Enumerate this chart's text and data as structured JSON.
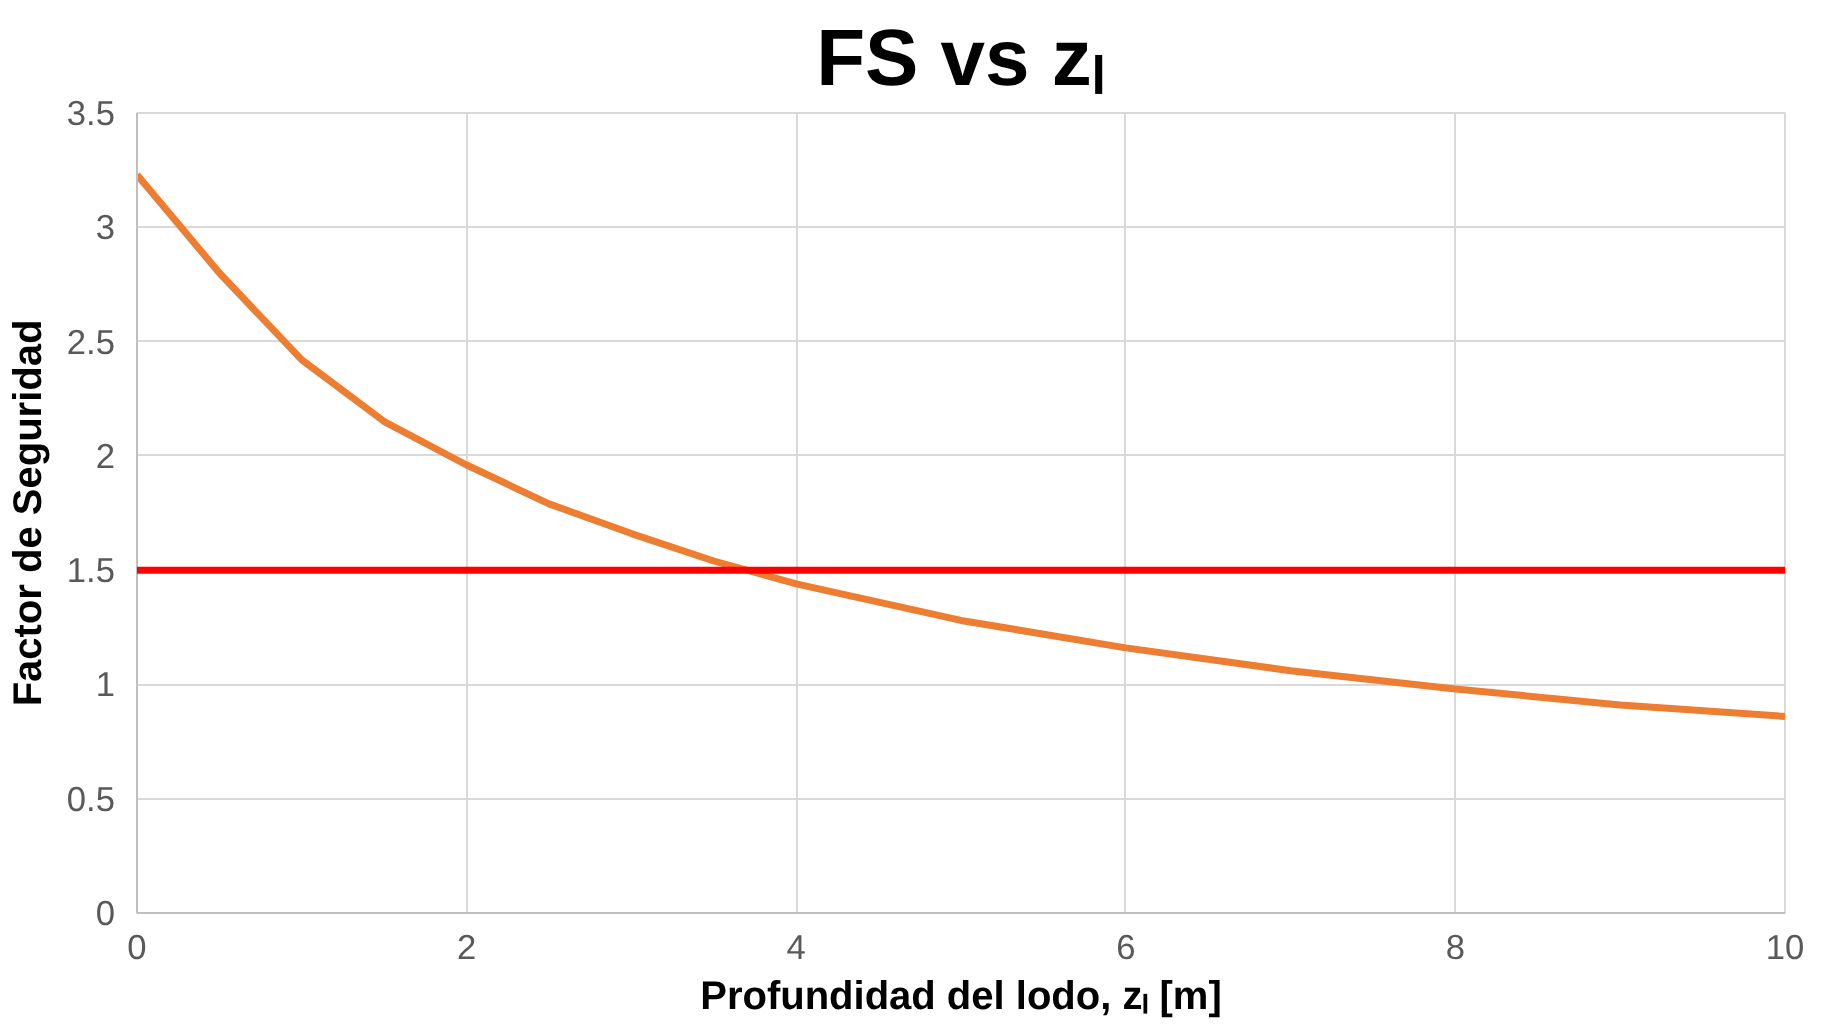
{
  "chart_data": {
    "type": "line",
    "title": "FS vs zₗ",
    "xlabel": "Profundidad del lodo, zₗ [m]",
    "ylabel": "Factor de Seguridad",
    "x": [
      0,
      0.5,
      1,
      1.5,
      2,
      2.5,
      3,
      3.5,
      4,
      5,
      6,
      7,
      8,
      9,
      10
    ],
    "series": [
      {
        "color": "#ed7d31",
        "values": [
          3.23,
          2.8,
          2.42,
          2.15,
          1.96,
          1.79,
          1.66,
          1.54,
          1.44,
          1.28,
          1.16,
          1.06,
          0.98,
          0.91,
          0.86
        ]
      }
    ],
    "xlim": [
      0,
      10
    ],
    "xticks": [
      0,
      2,
      4,
      6,
      8,
      10
    ],
    "ylim": [
      0,
      3.5
    ],
    "yticks": [
      0,
      {
        "value": 0.5,
        "label": "0.5"
      },
      1,
      {
        "value": 1.5,
        "label": "1.5"
      },
      2,
      {
        "value": 2.5,
        "label": "2.5"
      },
      3,
      {
        "value": 3.5,
        "label": "3.5"
      }
    ],
    "ref_lines": [
      {
        "axis": "y",
        "value": 1.5,
        "color": "#ff0000",
        "line_style": "solid"
      }
    ],
    "grid": true,
    "marker": "none",
    "line_style": "solid"
  }
}
